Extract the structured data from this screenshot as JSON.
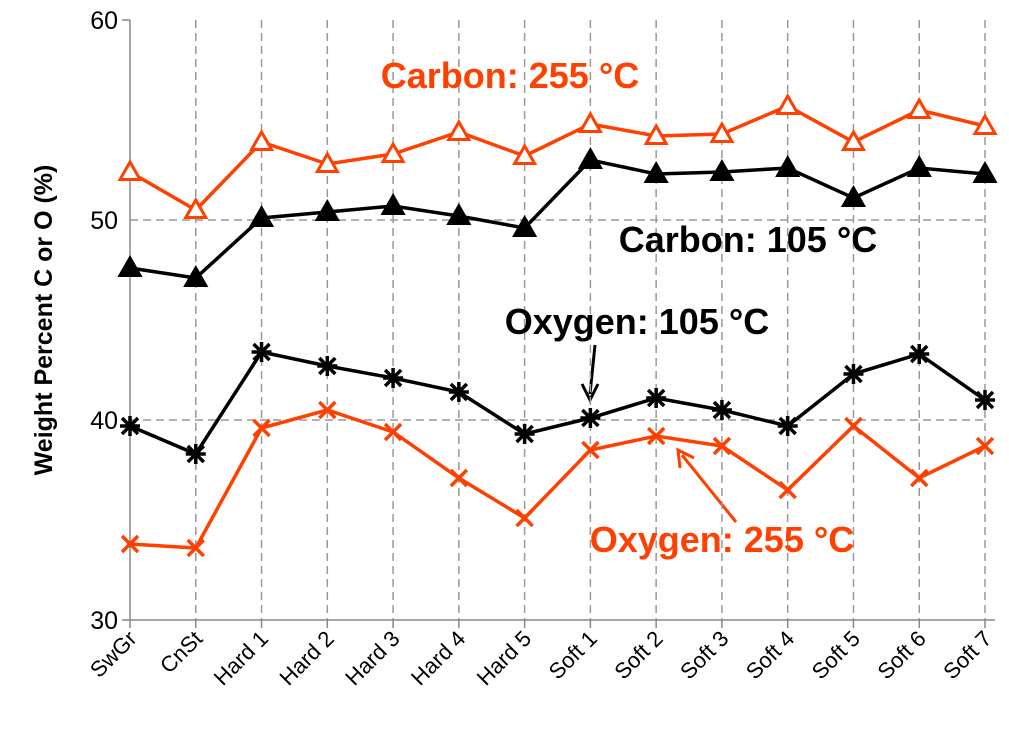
{
  "chart_data": {
    "type": "line",
    "y_label": "Weight Percent C or O (%)",
    "categories": [
      "SwGr",
      "CnSt",
      "Hard 1",
      "Hard 2",
      "Hard 3",
      "Hard 4",
      "Hard 5",
      "Soft 1",
      "Soft 2",
      "Soft 3",
      "Soft 4",
      "Soft 5",
      "Soft 6",
      "Soft 7"
    ],
    "series": [
      {
        "name": "Carbon: 255 °C",
        "color": "#ff4000",
        "marker": "triangle-open",
        "values": [
          52.4,
          50.5,
          53.9,
          52.8,
          53.3,
          54.4,
          53.2,
          54.8,
          54.2,
          54.3,
          55.7,
          53.9,
          55.5,
          54.7
        ]
      },
      {
        "name": "Carbon: 105 °C",
        "color": "#000000",
        "marker": "triangle",
        "values": [
          47.6,
          47.1,
          50.1,
          50.4,
          50.7,
          50.2,
          49.6,
          53.0,
          52.3,
          52.4,
          52.6,
          51.1,
          52.6,
          52.3
        ]
      },
      {
        "name": "Oxygen: 105 °C",
        "color": "#000000",
        "marker": "star",
        "values": [
          39.7,
          38.3,
          43.4,
          42.7,
          42.1,
          41.4,
          39.3,
          40.1,
          41.1,
          40.5,
          39.7,
          42.3,
          43.3,
          41.0
        ]
      },
      {
        "name": "Oxygen: 255 °C",
        "color": "#ff4000",
        "marker": "x",
        "values": [
          33.8,
          33.6,
          39.6,
          40.5,
          39.4,
          37.1,
          35.1,
          38.5,
          39.2,
          38.7,
          36.5,
          39.7,
          37.1,
          38.7
        ]
      }
    ],
    "ylim": [
      30,
      60
    ],
    "yticks": [
      30,
      40,
      50,
      60
    ],
    "grid": true
  }
}
